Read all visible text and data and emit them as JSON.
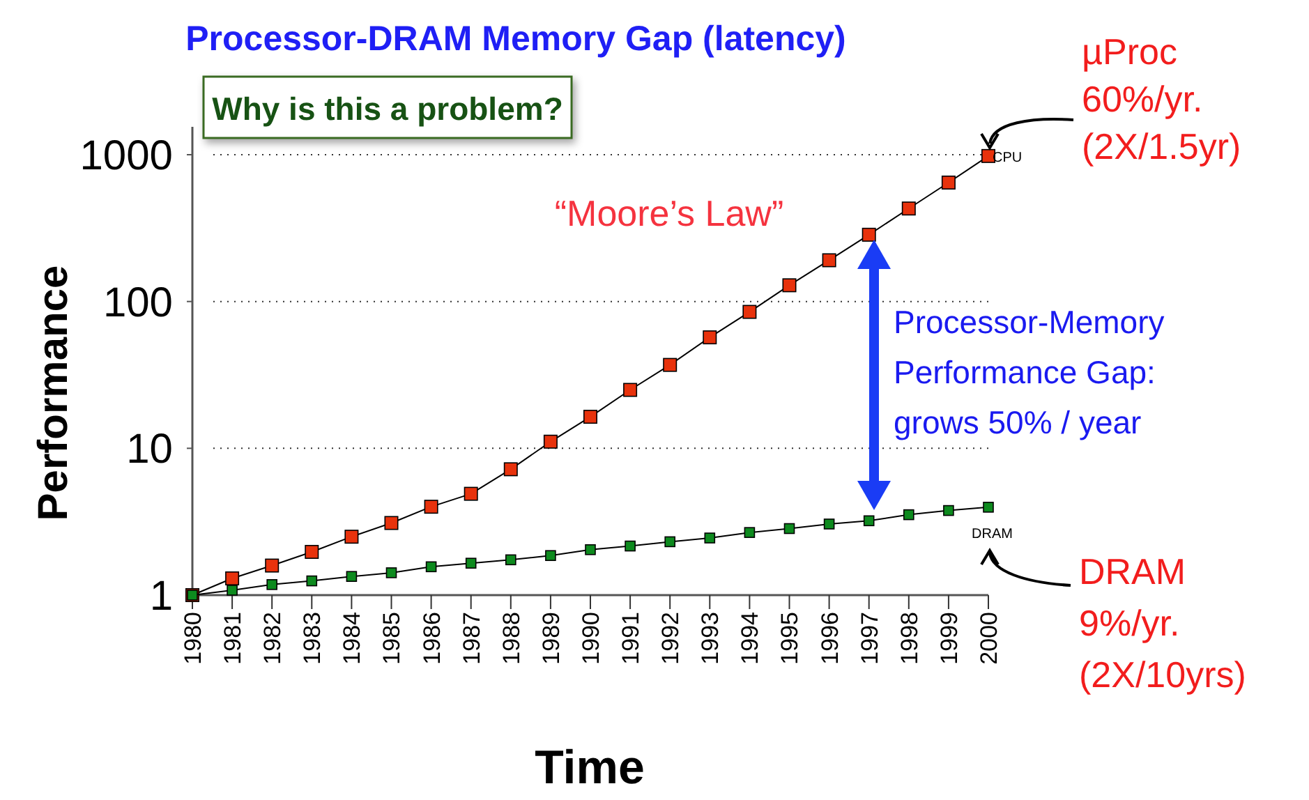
{
  "chart_data": {
    "type": "line",
    "title": "Processor-DRAM Memory Gap (latency)",
    "xlabel": "Time",
    "ylabel": "Performance",
    "x": [
      1980,
      1981,
      1982,
      1983,
      1984,
      1985,
      1986,
      1987,
      1988,
      1989,
      1990,
      1991,
      1992,
      1993,
      1994,
      1995,
      1996,
      1997,
      1998,
      1999,
      2000
    ],
    "series": [
      {
        "name": "CPU",
        "color": "#e8320c",
        "values": [
          1,
          1.3,
          1.59,
          1.97,
          2.5,
          3.1,
          4.0,
          4.9,
          7.2,
          11.1,
          16.4,
          25,
          37,
          57,
          85,
          129,
          191,
          285,
          430,
          646,
          980
        ]
      },
      {
        "name": "DRAM",
        "color": "#0d8a1e",
        "values": [
          1,
          1.08,
          1.18,
          1.25,
          1.34,
          1.42,
          1.56,
          1.65,
          1.74,
          1.86,
          2.04,
          2.16,
          2.31,
          2.45,
          2.67,
          2.84,
          3.05,
          3.21,
          3.53,
          3.77,
          3.97
        ]
      }
    ],
    "xlim": [
      1980,
      2000
    ],
    "xticks": [
      1980,
      1981,
      1982,
      1983,
      1984,
      1985,
      1986,
      1987,
      1988,
      1989,
      1990,
      1991,
      1992,
      1993,
      1994,
      1995,
      1996,
      1997,
      1998,
      1999,
      2000
    ],
    "ylim": [
      1,
      1000
    ],
    "yticks": [
      1,
      10,
      100,
      1000
    ],
    "log": "y",
    "grid": "y",
    "marker": "square",
    "line_style": "solid",
    "annotations": [
      "Why is this a problem?",
      "“Moore’s Law”",
      "Processor-Memory\nPerformance Gap:\ngrows 50% / year",
      "µProc\n60%/yr.\n(2X/1.5yr)",
      "DRAM\n9%/yr.\n(2X/10yrs)"
    ]
  }
}
